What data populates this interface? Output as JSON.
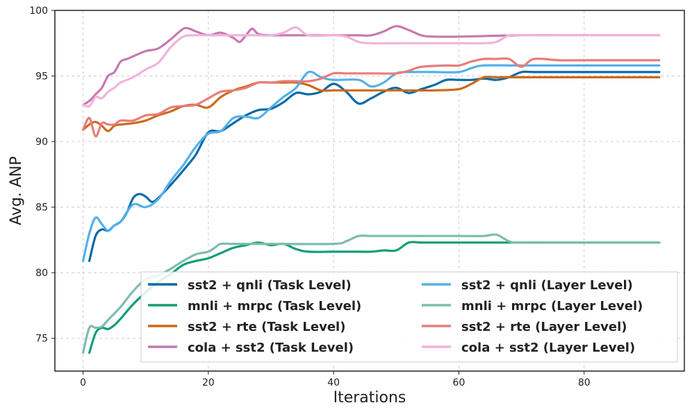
{
  "chart_data": {
    "type": "line",
    "title": "",
    "xlabel": "Iterations",
    "ylabel": "Avg. ANP",
    "xlim": [
      -4.5,
      96
    ],
    "ylim": [
      72.5,
      100
    ],
    "xticks": [
      0,
      20,
      40,
      60,
      80
    ],
    "yticks": [
      75,
      80,
      85,
      90,
      95,
      100
    ],
    "grid": true,
    "legend_position": "lower-right",
    "series": [
      {
        "name": "sst2 + qnli (Task Level)",
        "color": "#0a6aa6",
        "x": [
          1,
          2,
          3,
          4,
          5,
          6,
          7,
          8,
          9,
          10,
          11,
          12,
          14,
          16,
          18,
          20,
          22,
          24,
          26,
          28,
          30,
          32,
          34,
          36,
          38,
          40,
          42,
          44,
          46,
          48,
          50,
          52,
          54,
          56,
          58,
          60,
          62,
          64,
          66,
          68,
          70,
          72,
          76,
          80,
          84,
          88,
          92
        ],
        "y": [
          80.9,
          82.8,
          83.3,
          83.2,
          83.6,
          83.9,
          84.6,
          85.7,
          86.0,
          85.8,
          85.4,
          85.7,
          86.7,
          87.8,
          89.0,
          90.7,
          90.8,
          91.4,
          92.0,
          92.4,
          92.5,
          93.0,
          93.7,
          93.6,
          93.8,
          94.4,
          93.8,
          92.9,
          93.3,
          93.8,
          94.1,
          93.7,
          94.0,
          94.3,
          94.7,
          94.7,
          94.7,
          94.8,
          94.7,
          94.9,
          95.3,
          95.3,
          95.3,
          95.3,
          95.3,
          95.3,
          95.3
        ]
      },
      {
        "name": "mnli + mrpc (Task Level)",
        "color": "#109e73",
        "x": [
          1,
          2,
          3,
          4,
          5,
          6,
          8,
          10,
          12,
          14,
          16,
          18,
          20,
          22,
          24,
          26,
          28,
          30,
          32,
          34,
          36,
          40,
          44,
          46,
          48,
          50,
          52,
          54,
          56,
          58,
          60,
          70,
          80,
          92
        ],
        "y": [
          73.9,
          75.4,
          75.8,
          75.7,
          76.0,
          76.5,
          77.6,
          78.5,
          79.3,
          79.9,
          80.6,
          80.9,
          81.1,
          81.5,
          81.9,
          82.1,
          82.3,
          82.1,
          82.2,
          81.8,
          81.6,
          81.6,
          81.6,
          81.6,
          81.7,
          81.7,
          82.3,
          82.3,
          82.3,
          82.3,
          82.3,
          82.3,
          82.3,
          82.3
        ]
      },
      {
        "name": "sst2 + rte (Task Level)",
        "color": "#cc6a1c",
        "x": [
          0,
          1,
          2,
          3,
          4,
          5,
          6,
          8,
          10,
          12,
          14,
          16,
          18,
          20,
          22,
          24,
          26,
          28,
          30,
          32,
          34,
          36,
          38,
          40,
          44,
          48,
          52,
          56,
          60,
          62,
          64,
          66,
          70,
          76,
          80,
          92
        ],
        "y": [
          90.9,
          91.3,
          91.5,
          91.2,
          90.8,
          91.2,
          91.3,
          91.4,
          91.6,
          92.0,
          92.3,
          92.7,
          92.8,
          92.6,
          93.4,
          93.9,
          94.2,
          94.5,
          94.5,
          94.5,
          94.5,
          94.3,
          93.9,
          93.9,
          93.9,
          93.9,
          93.9,
          93.9,
          94.0,
          94.4,
          94.9,
          94.9,
          94.9,
          94.9,
          94.9,
          94.9
        ]
      },
      {
        "name": "cola + sst2 (Task Level)",
        "color": "#c679b0",
        "x": [
          0,
          1,
          2,
          3,
          4,
          5,
          6,
          7,
          8,
          10,
          12,
          14,
          16,
          17,
          18,
          20,
          22,
          24,
          25,
          26,
          27,
          28,
          30,
          32,
          36,
          40,
          44,
          46,
          48,
          50,
          52,
          54,
          56,
          60,
          70,
          80,
          92
        ],
        "y": [
          92.8,
          93.1,
          93.6,
          94.1,
          95.0,
          95.3,
          96.1,
          96.3,
          96.5,
          96.9,
          97.1,
          97.8,
          98.6,
          98.6,
          98.4,
          98.1,
          98.3,
          97.9,
          97.6,
          98.1,
          98.6,
          98.2,
          98.1,
          98.1,
          98.1,
          98.1,
          98.1,
          98.1,
          98.4,
          98.8,
          98.5,
          98.1,
          98.0,
          98.0,
          98.1,
          98.1,
          98.1
        ]
      },
      {
        "name": "sst2 + qnli (Layer Level)",
        "color": "#53b1e8",
        "x": [
          0,
          1,
          2,
          3,
          4,
          5,
          6,
          8,
          10,
          12,
          14,
          16,
          18,
          20,
          22,
          24,
          26,
          28,
          30,
          32,
          34,
          36,
          38,
          40,
          44,
          46,
          48,
          50,
          52,
          56,
          60,
          62,
          64,
          70,
          80,
          92
        ],
        "y": [
          80.9,
          83.0,
          84.2,
          83.7,
          83.2,
          83.6,
          83.9,
          85.2,
          85.0,
          85.6,
          87.0,
          88.2,
          89.6,
          90.6,
          90.8,
          91.8,
          91.9,
          91.8,
          92.6,
          93.4,
          94.1,
          95.3,
          94.9,
          94.7,
          94.7,
          94.2,
          94.5,
          95.2,
          95.3,
          95.3,
          95.3,
          95.6,
          95.8,
          95.8,
          95.8,
          95.8
        ]
      },
      {
        "name": "mnli + mrpc (Layer Level)",
        "color": "#7dbcad",
        "x": [
          0,
          1,
          2,
          3,
          4,
          6,
          8,
          10,
          12,
          14,
          16,
          18,
          20,
          21,
          22,
          24,
          30,
          40,
          42,
          44,
          46,
          50,
          60,
          64,
          66,
          68,
          70,
          80,
          92
        ],
        "y": [
          73.9,
          75.8,
          75.8,
          75.9,
          76.4,
          77.4,
          78.6,
          79.5,
          79.8,
          80.3,
          80.9,
          81.4,
          81.6,
          81.9,
          82.2,
          82.2,
          82.2,
          82.2,
          82.4,
          82.8,
          82.8,
          82.8,
          82.8,
          82.8,
          82.9,
          82.4,
          82.3,
          82.3,
          82.3
        ]
      },
      {
        "name": "sst2 + rte (Layer Level)",
        "color": "#e87c7b",
        "x": [
          0,
          1,
          2,
          3,
          4,
          5,
          6,
          8,
          10,
          12,
          14,
          16,
          18,
          20,
          22,
          24,
          26,
          28,
          30,
          32,
          34,
          36,
          38,
          40,
          42,
          46,
          50,
          52,
          54,
          58,
          60,
          62,
          64,
          66,
          68,
          70,
          72,
          76,
          80,
          92
        ],
        "y": [
          90.9,
          91.8,
          90.4,
          91.4,
          91.3,
          91.3,
          91.6,
          91.6,
          92.0,
          92.1,
          92.6,
          92.7,
          92.8,
          93.3,
          93.8,
          93.9,
          94.1,
          94.5,
          94.5,
          94.6,
          94.6,
          94.6,
          94.8,
          95.2,
          95.2,
          95.2,
          95.2,
          95.4,
          95.7,
          95.8,
          95.8,
          96.1,
          96.3,
          96.3,
          96.3,
          95.7,
          96.3,
          96.2,
          96.2,
          96.2
        ]
      },
      {
        "name": "cola + sst2 (Layer Level)",
        "color": "#f2b2d9",
        "x": [
          0,
          1,
          2,
          3,
          4,
          5,
          6,
          8,
          10,
          12,
          14,
          16,
          18,
          20,
          24,
          28,
          30,
          32,
          34,
          36,
          40,
          42,
          44,
          46,
          50,
          56,
          60,
          64,
          66,
          68,
          70,
          80,
          92
        ],
        "y": [
          92.8,
          92.7,
          93.4,
          93.3,
          93.8,
          94.1,
          94.5,
          94.9,
          95.5,
          96.0,
          97.2,
          98.0,
          98.1,
          98.1,
          98.1,
          98.1,
          98.1,
          98.3,
          98.7,
          98.1,
          98.1,
          98.0,
          97.6,
          97.5,
          97.5,
          97.5,
          97.5,
          97.5,
          97.6,
          98.1,
          98.1,
          98.1,
          98.1
        ]
      }
    ]
  }
}
